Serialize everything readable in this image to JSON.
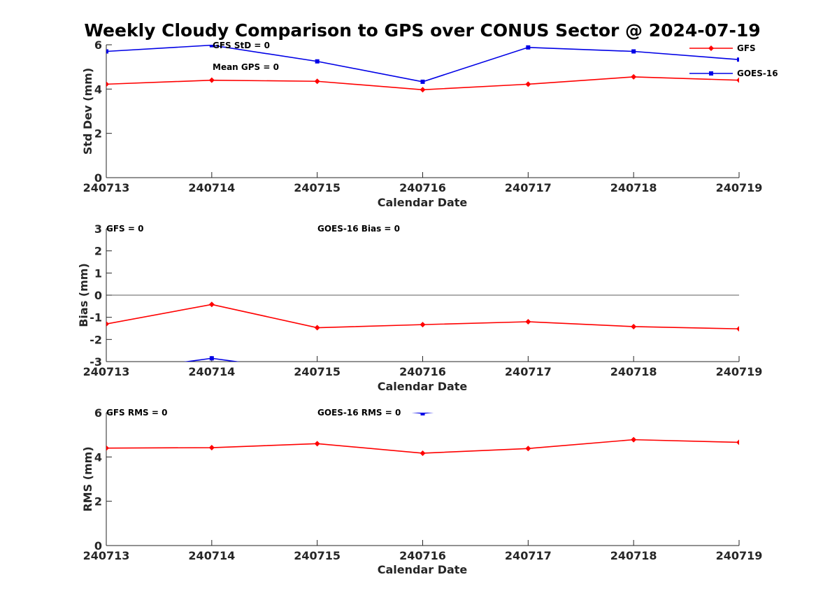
{
  "figure_title": "Weekly Cloudy Comparison to GPS over CONUS Sector @ 2024-07-19",
  "colors": {
    "gfs": "#ff0000",
    "goes": "#0000e6",
    "axis": "#262626",
    "zero_line": "#262626"
  },
  "chart_data": [
    {
      "type": "line",
      "id": "std",
      "title": "Weekly Cloudy Comparison to GPS over CONUS Sector @ 2024-07-19",
      "xlabel": "Calendar Date",
      "ylabel": "Std Dev (mm)",
      "categories": [
        "240713",
        "240714",
        "240715",
        "240716",
        "240717",
        "240718",
        "240719"
      ],
      "ylim": [
        0,
        6
      ],
      "yticks": [
        "0",
        "2",
        "4",
        "6"
      ],
      "ytick_values": [
        0,
        2,
        4,
        6
      ],
      "grid": false,
      "legend_placement": "top-right",
      "series": [
        {
          "name": "GFS",
          "marker": "diamond",
          "color": "#ff0000",
          "values": [
            4.22,
            4.4,
            4.35,
            3.97,
            4.22,
            4.55,
            4.4
          ]
        },
        {
          "name": "GOES-16",
          "marker": "square",
          "color": "#0000e6",
          "values": [
            5.7,
            5.98,
            5.25,
            4.33,
            5.88,
            5.7,
            5.33
          ]
        }
      ],
      "annotations": [
        "GFS StD = 0",
        "Mean GPS = 0"
      ]
    },
    {
      "type": "line",
      "id": "bias",
      "xlabel": "Calendar Date",
      "ylabel": "Bias (mm)",
      "categories": [
        "240713",
        "240714",
        "240715",
        "240716",
        "240717",
        "240718",
        "240719"
      ],
      "ylim": [
        -3,
        3
      ],
      "yticks": [
        "-3",
        "-2",
        "-1",
        "0",
        "1",
        "2",
        "3"
      ],
      "ytick_values": [
        -3,
        -2,
        -1,
        0,
        1,
        2,
        3
      ],
      "zero_line": true,
      "grid": false,
      "series": [
        {
          "name": "GFS",
          "marker": "diamond",
          "color": "#ff0000",
          "values": [
            -1.3,
            -0.42,
            -1.47,
            -1.33,
            -1.2,
            -1.42,
            -1.52
          ]
        },
        {
          "name": "GOES-16",
          "marker": "square",
          "color": "#0000e6",
          "values": [
            -3.5,
            -2.85,
            -3.5,
            null,
            null,
            null,
            null
          ]
        }
      ],
      "annotations": [
        "GFS = 0",
        "GOES-16 Bias  = 0"
      ]
    },
    {
      "type": "line",
      "id": "rms",
      "xlabel": "Calendar Date",
      "ylabel": "RMS (mm)",
      "categories": [
        "240713",
        "240714",
        "240715",
        "240716",
        "240717",
        "240718",
        "240719"
      ],
      "ylim": [
        0,
        6
      ],
      "yticks": [
        "0",
        "2",
        "4",
        "6"
      ],
      "ytick_values": [
        0,
        2,
        4,
        6
      ],
      "grid": false,
      "series": [
        {
          "name": "GFS",
          "marker": "diamond",
          "color": "#ff0000",
          "values": [
            4.4,
            4.42,
            4.6,
            4.17,
            4.38,
            4.78,
            4.66
          ]
        },
        {
          "name": "GOES-16",
          "marker": "square",
          "color": "#0000e6",
          "values": [
            null,
            null,
            6.5,
            5.97,
            6.5,
            null,
            null
          ]
        }
      ],
      "annotations": [
        "GFS RMS = 0",
        "GOES-16 RMS = 0"
      ]
    }
  ]
}
